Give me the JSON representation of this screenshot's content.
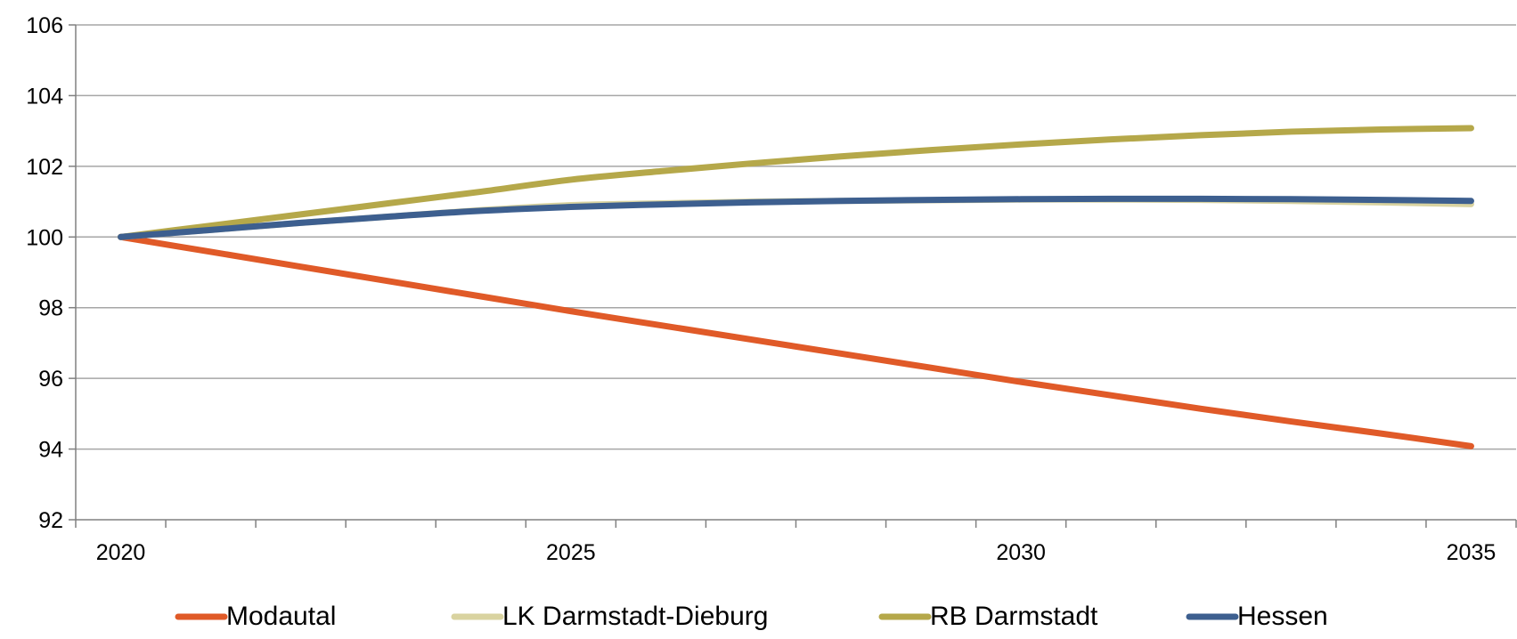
{
  "chart_data": {
    "type": "line",
    "x": [
      2020,
      2021,
      2022,
      2023,
      2024,
      2025,
      2026,
      2027,
      2028,
      2029,
      2030,
      2031,
      2032,
      2033,
      2034,
      2035
    ],
    "xticks": [
      "2020",
      "2025",
      "2030",
      "2035"
    ],
    "yticks": [
      "92",
      "94",
      "96",
      "98",
      "100",
      "102",
      "104",
      "106"
    ],
    "ylim": [
      92,
      106
    ],
    "xlim": [
      2019.5,
      2035.5
    ],
    "grid": true,
    "legend_position": "bottom",
    "series": [
      {
        "name": "Modautal",
        "color": "#e05a28",
        "values": [
          100,
          99.58,
          99.16,
          98.74,
          98.32,
          97.9,
          97.5,
          97.1,
          96.7,
          96.3,
          95.9,
          95.52,
          95.14,
          94.78,
          94.44,
          94.08
        ]
      },
      {
        "name": "LK Darmstadt-Dieburg",
        "color": "#d9d3a0",
        "values": [
          100,
          100.2,
          100.4,
          100.58,
          100.76,
          100.9,
          100.95,
          101.0,
          101.02,
          101.04,
          101.06,
          101.06,
          101.05,
          101.02,
          100.98,
          100.93
        ]
      },
      {
        "name": "RB Darmstadt",
        "color": "#b5a84a",
        "values": [
          100,
          100.32,
          100.64,
          100.96,
          101.28,
          101.62,
          101.86,
          102.08,
          102.28,
          102.46,
          102.62,
          102.76,
          102.88,
          102.98,
          103.04,
          103.08
        ]
      },
      {
        "name": "Hessen",
        "color": "#3d5f8f",
        "values": [
          100,
          100.2,
          100.4,
          100.58,
          100.74,
          100.85,
          100.92,
          100.98,
          101.02,
          101.05,
          101.07,
          101.08,
          101.08,
          101.07,
          101.05,
          101.02
        ]
      }
    ]
  }
}
